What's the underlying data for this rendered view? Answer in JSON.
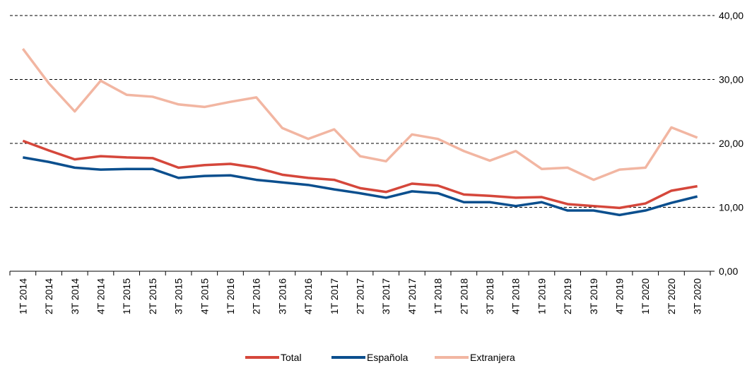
{
  "chart_data": {
    "type": "line",
    "categories": [
      "1T 2014",
      "2T 2014",
      "3T 2014",
      "4T 2014",
      "1T 2015",
      "2T 2015",
      "3T 2015",
      "4T 2015",
      "1T 2016",
      "2T 2016",
      "3T 2016",
      "4T 2016",
      "1T 2017",
      "2T 2017",
      "3T 2017",
      "4T 2017",
      "1T 2018",
      "2T 2018",
      "3T 2018",
      "4T 2018",
      "1T 2019",
      "2T 2019",
      "3T 2019",
      "4T 2019",
      "1T 2020",
      "2T 2020",
      "3T 2020"
    ],
    "series": [
      {
        "name": "Total",
        "color": "#d5473b",
        "values": [
          20.4,
          18.9,
          17.5,
          18.0,
          17.8,
          17.7,
          16.2,
          16.6,
          16.8,
          16.2,
          15.1,
          14.6,
          14.3,
          13.0,
          12.4,
          13.7,
          13.4,
          12.0,
          11.8,
          11.5,
          11.6,
          10.5,
          10.2,
          9.9,
          10.6,
          12.6,
          13.3
        ]
      },
      {
        "name": "Española",
        "color": "#0b4f8e",
        "values": [
          17.8,
          17.1,
          16.2,
          15.9,
          16.0,
          16.0,
          14.6,
          14.9,
          15.0,
          14.3,
          13.9,
          13.5,
          12.8,
          12.2,
          11.5,
          12.5,
          12.2,
          10.8,
          10.8,
          10.2,
          10.8,
          9.5,
          9.5,
          8.8,
          9.5,
          10.7,
          11.7
        ]
      },
      {
        "name": "Extranjera",
        "color": "#f2b6a2",
        "values": [
          34.8,
          29.4,
          25.0,
          29.8,
          27.6,
          27.3,
          26.1,
          25.7,
          26.5,
          27.2,
          22.4,
          20.7,
          22.2,
          18.0,
          17.2,
          21.4,
          20.7,
          18.8,
          17.3,
          18.8,
          16.0,
          16.2,
          14.3,
          15.9,
          16.2,
          22.5,
          20.9
        ]
      }
    ],
    "ylim": [
      0,
      40
    ],
    "yticks": [
      {
        "value": 0,
        "label": "0,00"
      },
      {
        "value": 10,
        "label": "10,00"
      },
      {
        "value": 20,
        "label": "20,00"
      },
      {
        "value": 30,
        "label": "30,00"
      },
      {
        "value": 40,
        "label": "40,00"
      }
    ],
    "grid": true,
    "legend": "bottom"
  }
}
